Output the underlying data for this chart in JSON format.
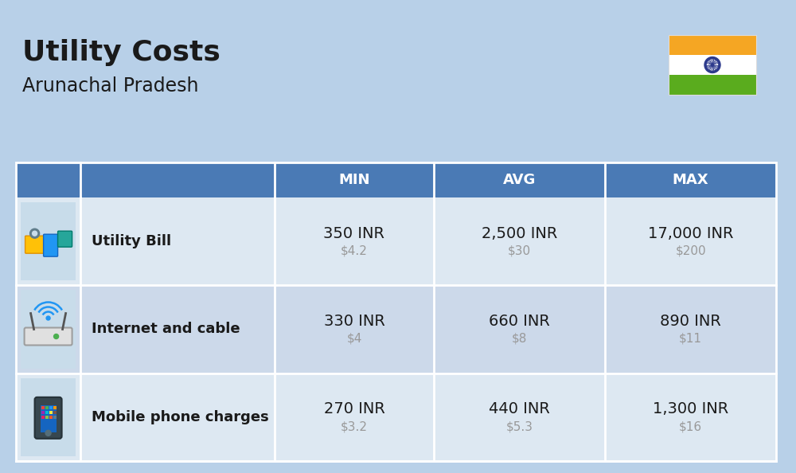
{
  "title": "Utility Costs",
  "subtitle": "Arunachal Pradesh",
  "bg_color": "#b8d0e8",
  "header_bg": "#4a7ab5",
  "header_text_color": "#ffffff",
  "row_bg_odd": "#dde8f2",
  "row_bg_even": "#ccd9ea",
  "table_border_color": "#ffffff",
  "rows": [
    {
      "label": "Utility Bill",
      "min_inr": "350 INR",
      "min_usd": "$4.2",
      "avg_inr": "2,500 INR",
      "avg_usd": "$30",
      "max_inr": "17,000 INR",
      "max_usd": "$200"
    },
    {
      "label": "Internet and cable",
      "min_inr": "330 INR",
      "min_usd": "$4",
      "avg_inr": "660 INR",
      "avg_usd": "$8",
      "max_inr": "890 INR",
      "max_usd": "$11"
    },
    {
      "label": "Mobile phone charges",
      "min_inr": "270 INR",
      "min_usd": "$3.2",
      "avg_inr": "440 INR",
      "avg_usd": "$5.3",
      "max_inr": "1,300 INR",
      "max_usd": "$16"
    }
  ],
  "flag_colors": [
    "#f5a623",
    "#ffffff",
    "#5aac1e"
  ],
  "flag_chakra_color": "#2d3a8c",
  "title_fontsize": 26,
  "subtitle_fontsize": 17,
  "header_fontsize": 13,
  "label_fontsize": 13,
  "value_fontsize": 14,
  "usd_fontsize": 11,
  "usd_color": "#999999",
  "label_color": "#1a1a1a",
  "value_color": "#1a1a1a",
  "icon_bg": "#c8dcea"
}
